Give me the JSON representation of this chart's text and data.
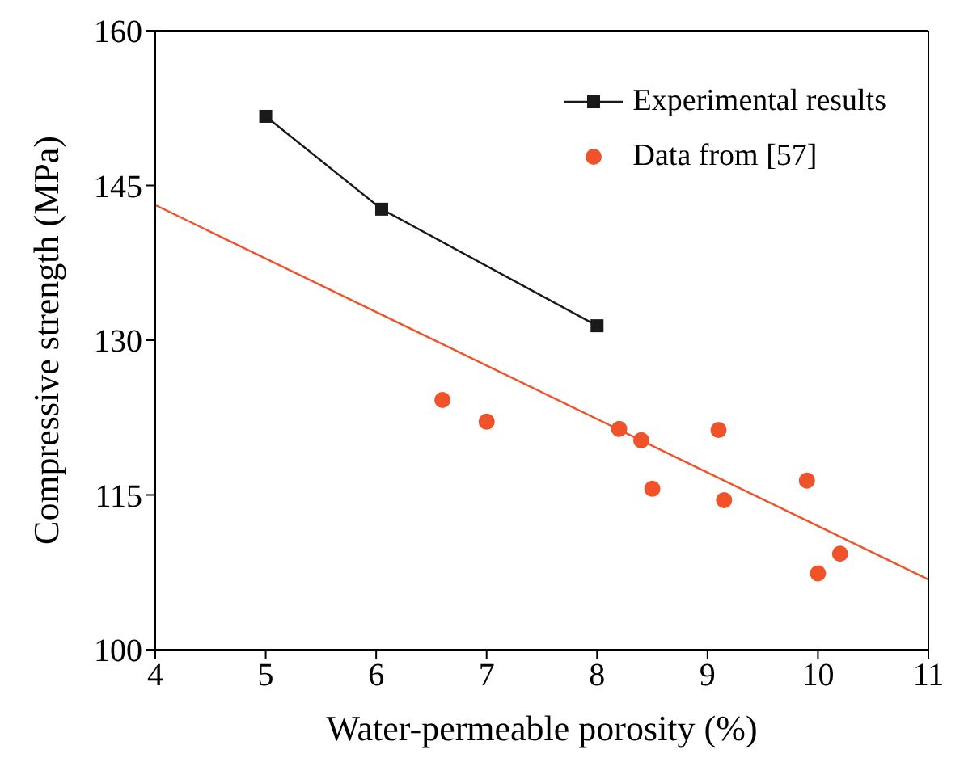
{
  "chart_data": {
    "type": "scatter",
    "xlabel": "Water-permeable porosity (%)",
    "ylabel": "Compressive strength (MPa)",
    "xlim": [
      4,
      11
    ],
    "xticks": [
      4,
      5,
      6,
      7,
      8,
      9,
      10,
      11
    ],
    "ylim": [
      100,
      160
    ],
    "yticks": [
      100,
      115,
      130,
      145,
      160
    ],
    "legend": "top right",
    "line_style": "solid",
    "series": [
      {
        "name": "Experimental results",
        "type": "line",
        "marker": "square",
        "color": "#1a1a1a",
        "x": [
          5,
          6.05,
          8
        ],
        "values": [
          151.7,
          142.7,
          131.4
        ]
      },
      {
        "name": "Data from [57]",
        "marker": "circle",
        "color": "#f0522a",
        "x": [
          6.6,
          7.0,
          8.2,
          8.4,
          8.5,
          9.1,
          9.15,
          9.9,
          10.0,
          10.2
        ],
        "values": [
          124.2,
          122.1,
          121.4,
          120.3,
          115.6,
          121.3,
          114.5,
          116.4,
          107.4,
          109.3
        ]
      },
      {
        "type": "line",
        "marker": "none",
        "color": "#f0522a",
        "x": [
          4,
          11
        ],
        "values": [
          143.1,
          106.8
        ]
      }
    ]
  }
}
